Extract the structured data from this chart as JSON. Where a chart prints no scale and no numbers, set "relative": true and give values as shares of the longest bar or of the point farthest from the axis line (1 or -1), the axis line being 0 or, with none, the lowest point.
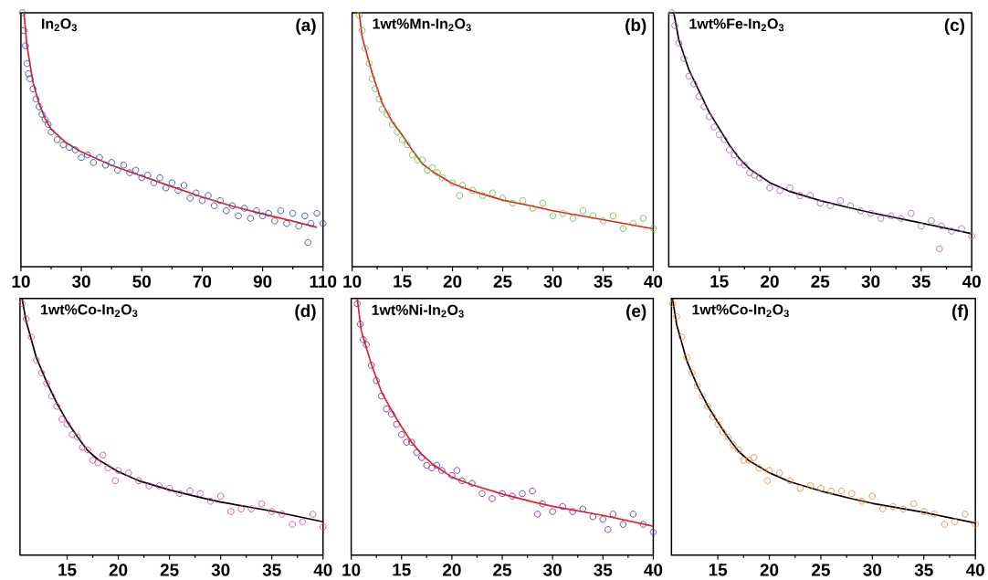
{
  "chart_data": [
    {
      "type": "scatter",
      "title": "In$_{2}$O$_{3}$",
      "annotations": [
        "(a)"
      ],
      "relative": true,
      "xlim": [
        10,
        110
      ],
      "xticks": [
        10,
        30,
        50,
        70,
        90,
        110
      ],
      "series": [
        {
          "marker": "circle",
          "color": "#3050a8",
          "x": [
            10.5,
            11,
            11.5,
            12,
            12.5,
            13,
            14,
            15,
            16,
            17,
            18,
            19,
            20,
            22,
            24,
            26,
            28,
            30,
            32,
            34,
            36,
            38,
            40,
            42,
            44,
            46,
            48,
            50,
            52,
            54,
            56,
            58,
            60,
            62,
            64,
            66,
            68,
            70,
            72,
            74,
            76,
            78,
            80,
            82,
            84,
            86,
            88,
            90,
            92,
            94,
            96,
            98,
            100,
            102,
            104,
            105,
            106,
            108,
            110
          ],
          "values": [
            1.0,
            0.93,
            0.87,
            0.8,
            0.76,
            0.74,
            0.7,
            0.66,
            0.63,
            0.6,
            0.58,
            0.56,
            0.53,
            0.5,
            0.48,
            0.47,
            0.46,
            0.43,
            0.44,
            0.41,
            0.43,
            0.4,
            0.41,
            0.38,
            0.4,
            0.37,
            0.38,
            0.35,
            0.36,
            0.33,
            0.35,
            0.31,
            0.33,
            0.3,
            0.32,
            0.27,
            0.29,
            0.26,
            0.28,
            0.24,
            0.26,
            0.22,
            0.24,
            0.2,
            0.23,
            0.19,
            0.22,
            0.2,
            0.21,
            0.18,
            0.22,
            0.17,
            0.21,
            0.16,
            0.2,
            0.095,
            0.17,
            0.21,
            0.17
          ]
        },
        {
          "type": "line",
          "line_style": "solid",
          "color": "#e82020",
          "x": [
            11,
            12,
            14,
            16,
            18,
            20,
            25,
            30,
            40,
            50,
            60,
            70,
            80,
            90,
            100,
            108
          ],
          "values": [
            1.0,
            0.87,
            0.726,
            0.643,
            0.583,
            0.542,
            0.488,
            0.452,
            0.399,
            0.357,
            0.315,
            0.274,
            0.238,
            0.208,
            0.179,
            0.155
          ]
        }
      ]
    },
    {
      "type": "scatter",
      "title": "1wt%Mn-In$_{2}$O$_{3}$",
      "annotations": [
        "(b)"
      ],
      "relative": true,
      "xlim": [
        10,
        40
      ],
      "xticks": [
        10,
        15,
        20,
        25,
        30,
        35,
        40
      ],
      "series": [
        {
          "marker": "circle",
          "color": "#5cbf40",
          "x": [
            10.7,
            11,
            11.3,
            11.7,
            12,
            12.3,
            12.7,
            13,
            13.5,
            14,
            14.5,
            15,
            15.5,
            16,
            16.5,
            17,
            17.5,
            18,
            18.5,
            19,
            20,
            20.7,
            21,
            22,
            23,
            24,
            25,
            26,
            27,
            28,
            29,
            30,
            31,
            32,
            33,
            34,
            35,
            36,
            37,
            38,
            39,
            40
          ],
          "values": [
            0.99,
            0.93,
            0.86,
            0.8,
            0.74,
            0.7,
            0.66,
            0.62,
            0.6,
            0.56,
            0.53,
            0.5,
            0.48,
            0.44,
            0.42,
            0.42,
            0.38,
            0.39,
            0.37,
            0.35,
            0.33,
            0.28,
            0.32,
            0.3,
            0.28,
            0.29,
            0.27,
            0.25,
            0.26,
            0.23,
            0.25,
            0.2,
            0.21,
            0.19,
            0.22,
            0.2,
            0.18,
            0.2,
            0.15,
            0.17,
            0.19,
            0.15
          ]
        },
        {
          "type": "line",
          "line_style": "solid",
          "color": "#e82020",
          "x": [
            10.7,
            11,
            12,
            13,
            14,
            15,
            16,
            17,
            18,
            20,
            22,
            25,
            28,
            30,
            35,
            40
          ],
          "values": [
            1.0,
            0.905,
            0.762,
            0.643,
            0.571,
            0.518,
            0.458,
            0.405,
            0.375,
            0.327,
            0.298,
            0.262,
            0.238,
            0.22,
            0.185,
            0.149
          ]
        }
      ]
    },
    {
      "type": "scatter",
      "title": "1wt%Fe-In$_{2}$O$_{3}$",
      "annotations": [
        "(c)"
      ],
      "relative": true,
      "xlim": [
        10,
        40
      ],
      "xticks": [
        15,
        20,
        25,
        30,
        35,
        40
      ],
      "series": [
        {
          "marker": "circle",
          "color": "#b060b8",
          "x": [
            10.3,
            10.6,
            11,
            11.5,
            12,
            12.5,
            13,
            13.5,
            14,
            14.5,
            15,
            15.5,
            16,
            16.5,
            17,
            17.5,
            18,
            18.5,
            19,
            20,
            21,
            22,
            23,
            24,
            25,
            26,
            27,
            28,
            29,
            30,
            31,
            32,
            33,
            34,
            35,
            36,
            36.8,
            37,
            38,
            39,
            40
          ],
          "values": [
            1.0,
            0.95,
            0.88,
            0.82,
            0.75,
            0.72,
            0.67,
            0.63,
            0.59,
            0.55,
            0.52,
            0.5,
            0.46,
            0.44,
            0.41,
            0.4,
            0.37,
            0.36,
            0.35,
            0.31,
            0.3,
            0.31,
            0.28,
            0.28,
            0.25,
            0.24,
            0.26,
            0.24,
            0.22,
            0.21,
            0.19,
            0.2,
            0.19,
            0.21,
            0.16,
            0.18,
            0.07,
            0.16,
            0.14,
            0.15,
            0.12
          ]
        },
        {
          "type": "line",
          "line_style": "solid",
          "color": "#000000",
          "x": [
            10.5,
            11,
            12,
            13,
            14,
            15,
            16,
            17,
            18,
            20,
            22,
            25,
            28,
            30,
            35,
            40
          ],
          "values": [
            1.0,
            0.893,
            0.775,
            0.692,
            0.609,
            0.544,
            0.479,
            0.426,
            0.385,
            0.331,
            0.296,
            0.26,
            0.231,
            0.213,
            0.172,
            0.13
          ]
        }
      ]
    },
    {
      "type": "scatter",
      "title": "1wt%Co-In$_{2}$O$_{3}$",
      "annotations": [
        "(d)"
      ],
      "relative": true,
      "xlim": [
        10.4,
        40
      ],
      "xticks": [
        15,
        20,
        25,
        30,
        35,
        40
      ],
      "series": [
        {
          "marker": "circle",
          "color": "#e8409a",
          "x": [
            10.6,
            11,
            11.5,
            12,
            12.5,
            13,
            13.5,
            14,
            14.5,
            15,
            15.5,
            16,
            16.5,
            17,
            17.5,
            18,
            18.5,
            19,
            19.7,
            20,
            21,
            22,
            23,
            24,
            25,
            26,
            27,
            28,
            29,
            30,
            31,
            32,
            33,
            34,
            35,
            36,
            37,
            38,
            39,
            40
          ],
          "values": [
            0.98,
            0.92,
            0.85,
            0.76,
            0.71,
            0.67,
            0.62,
            0.58,
            0.53,
            0.51,
            0.47,
            0.46,
            0.42,
            0.41,
            0.37,
            0.36,
            0.39,
            0.34,
            0.29,
            0.33,
            0.32,
            0.29,
            0.27,
            0.27,
            0.26,
            0.24,
            0.25,
            0.24,
            0.21,
            0.23,
            0.17,
            0.18,
            0.18,
            0.2,
            0.17,
            0.16,
            0.12,
            0.13,
            0.16,
            0.11
          ]
        },
        {
          "type": "line",
          "line_style": "solid",
          "color": "#000000",
          "x": [
            10.6,
            11,
            12,
            13,
            14,
            15,
            16,
            17,
            18,
            20,
            22,
            25,
            28,
            30,
            35,
            40
          ],
          "values": [
            1.0,
            0.911,
            0.769,
            0.675,
            0.592,
            0.521,
            0.462,
            0.408,
            0.373,
            0.325,
            0.29,
            0.254,
            0.225,
            0.207,
            0.172,
            0.13
          ]
        }
      ]
    },
    {
      "type": "scatter",
      "title": "1wt%Ni-In$_{2}$O$_{3}$",
      "annotations": [
        "(e)"
      ],
      "relative": true,
      "xlim": [
        10,
        40
      ],
      "xticks": [
        10,
        15,
        20,
        25,
        30,
        35,
        40
      ],
      "series": [
        {
          "marker": "circle",
          "color": "#7a2a9a",
          "x": [
            10.6,
            10.9,
            11.2,
            11.5,
            12,
            12.5,
            13,
            13.5,
            14,
            14.5,
            15,
            15.5,
            16,
            16.5,
            17,
            17.5,
            18,
            18.5,
            19,
            20,
            20.5,
            21,
            22,
            23,
            24,
            25,
            26,
            27,
            28,
            28.5,
            29,
            30,
            31,
            32,
            33,
            34,
            35,
            35.5,
            36,
            37,
            38,
            39,
            40
          ],
          "values": [
            0.98,
            0.9,
            0.84,
            0.82,
            0.74,
            0.68,
            0.62,
            0.57,
            0.55,
            0.51,
            0.47,
            0.44,
            0.44,
            0.4,
            0.38,
            0.35,
            0.34,
            0.35,
            0.33,
            0.31,
            0.33,
            0.29,
            0.28,
            0.24,
            0.22,
            0.24,
            0.23,
            0.24,
            0.25,
            0.16,
            0.2,
            0.17,
            0.19,
            0.17,
            0.18,
            0.15,
            0.14,
            0.1,
            0.16,
            0.12,
            0.16,
            0.12,
            0.09
          ]
        },
        {
          "type": "line",
          "line_style": "solid",
          "color": "#e82020",
          "x": [
            10.6,
            11,
            12,
            13,
            14,
            15,
            16,
            17,
            18,
            20,
            22,
            25,
            28,
            30,
            35,
            40
          ],
          "values": [
            1.0,
            0.875,
            0.744,
            0.637,
            0.565,
            0.5,
            0.44,
            0.393,
            0.357,
            0.304,
            0.274,
            0.238,
            0.208,
            0.19,
            0.155,
            0.113
          ]
        }
      ]
    },
    {
      "type": "scatter",
      "title": "1wt%Co-In$_{2}$O$_{3}$",
      "annotations": [
        "(f)"
      ],
      "relative": true,
      "xlim": [
        10.5,
        40
      ],
      "xticks": [
        15,
        20,
        25,
        30,
        35,
        40
      ],
      "series": [
        {
          "marker": "circle",
          "color": "#f08a30",
          "x": [
            10.6,
            11,
            11.5,
            12,
            12.5,
            13,
            13.5,
            14,
            14.5,
            15,
            15.5,
            16,
            16.5,
            17,
            17.5,
            18,
            18.5,
            19,
            19.8,
            20,
            21,
            22,
            23,
            24,
            25,
            26,
            27,
            28,
            29,
            30,
            31,
            32,
            33,
            34,
            35,
            36,
            37,
            38,
            39,
            40
          ],
          "values": [
            0.98,
            0.93,
            0.85,
            0.77,
            0.71,
            0.66,
            0.62,
            0.58,
            0.54,
            0.51,
            0.48,
            0.46,
            0.43,
            0.41,
            0.37,
            0.37,
            0.38,
            0.34,
            0.29,
            0.33,
            0.32,
            0.29,
            0.26,
            0.27,
            0.26,
            0.25,
            0.25,
            0.24,
            0.21,
            0.23,
            0.18,
            0.19,
            0.18,
            0.2,
            0.17,
            0.16,
            0.12,
            0.13,
            0.16,
            0.12
          ]
        },
        {
          "type": "line",
          "line_style": "solid",
          "color": "#000000",
          "x": [
            10.6,
            11,
            12,
            13,
            14,
            15,
            16,
            17,
            18,
            20,
            22,
            25,
            28,
            30,
            35,
            40
          ],
          "values": [
            1.0,
            0.899,
            0.756,
            0.661,
            0.583,
            0.518,
            0.458,
            0.405,
            0.369,
            0.321,
            0.286,
            0.25,
            0.22,
            0.202,
            0.167,
            0.125
          ]
        }
      ]
    }
  ]
}
